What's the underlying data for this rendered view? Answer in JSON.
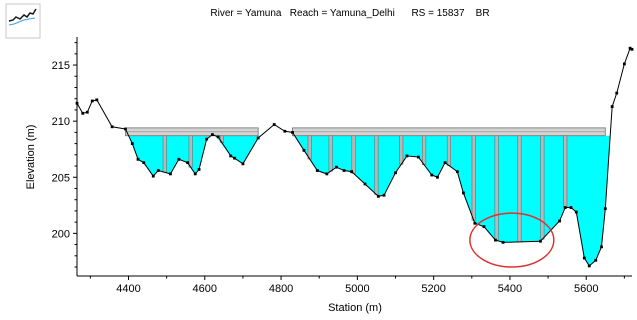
{
  "window": {
    "thumbnail_icon": "cross-section-thumbnail-icon"
  },
  "chart_data": {
    "type": "area",
    "title": "River = Yamuna   Reach = Yamuna_Delhi      RS = 15837    BR",
    "xlabel": "Station (m)",
    "ylabel": "Elevation (m)",
    "xlim": [
      4265,
      5720
    ],
    "ylim": [
      196.2,
      217.5
    ],
    "xticks": [
      4400,
      4600,
      4800,
      5000,
      5200,
      5400,
      5600
    ],
    "yticks": [
      200,
      205,
      210,
      215
    ],
    "series": [
      {
        "kind": "ground-profile",
        "points": [
          [
            4265,
            211.6
          ],
          [
            4280,
            210.7
          ],
          [
            4292,
            210.8
          ],
          [
            4305,
            211.8
          ],
          [
            4317,
            211.9
          ],
          [
            4357,
            209.5
          ],
          [
            4392,
            209.3
          ],
          [
            4410,
            208.0
          ],
          [
            4425,
            206.6
          ],
          [
            4440,
            206.3
          ],
          [
            4465,
            205.1
          ],
          [
            4478,
            205.6
          ],
          [
            4510,
            205.3
          ],
          [
            4532,
            206.6
          ],
          [
            4555,
            206.3
          ],
          [
            4575,
            205.3
          ],
          [
            4585,
            205.7
          ],
          [
            4605,
            208.4
          ],
          [
            4620,
            208.8
          ],
          [
            4635,
            208.6
          ],
          [
            4668,
            206.9
          ],
          [
            4678,
            206.7
          ],
          [
            4700,
            206.2
          ],
          [
            4740,
            208.5
          ],
          [
            4782,
            209.7
          ],
          [
            4810,
            209.1
          ],
          [
            4830,
            209.0
          ],
          [
            4860,
            207.4
          ],
          [
            4895,
            205.6
          ],
          [
            4920,
            205.3
          ],
          [
            4945,
            205.9
          ],
          [
            4965,
            205.6
          ],
          [
            4985,
            205.5
          ],
          [
            5020,
            204.4
          ],
          [
            5055,
            203.3
          ],
          [
            5070,
            203.4
          ],
          [
            5100,
            205.4
          ],
          [
            5130,
            206.9
          ],
          [
            5160,
            206.8
          ],
          [
            5195,
            205.2
          ],
          [
            5210,
            205.0
          ],
          [
            5230,
            206.3
          ],
          [
            5262,
            205.5
          ],
          [
            5278,
            203.6
          ],
          [
            5308,
            200.9
          ],
          [
            5332,
            200.6
          ],
          [
            5362,
            199.4
          ],
          [
            5382,
            199.2
          ],
          [
            5480,
            199.3
          ],
          [
            5530,
            201.1
          ],
          [
            5545,
            202.3
          ],
          [
            5560,
            202.3
          ],
          [
            5574,
            201.9
          ],
          [
            5595,
            197.8
          ],
          [
            5608,
            197.1
          ],
          [
            5625,
            197.6
          ],
          [
            5640,
            198.8
          ],
          [
            5650,
            202.2
          ],
          [
            5668,
            211.3
          ],
          [
            5680,
            212.5
          ],
          [
            5700,
            215.1
          ],
          [
            5715,
            216.5
          ],
          [
            5720,
            216.4
          ]
        ]
      },
      {
        "kind": "water-fill",
        "water_surface_elevation": 208.7,
        "color": "#00FFFF"
      },
      {
        "kind": "bridge-deck",
        "low_chord": 208.7,
        "high_chord": 209.4,
        "segments": [
          [
            4392,
            4740
          ],
          [
            4830,
            5650
          ]
        ],
        "color": "#A9A9A9"
      },
      {
        "kind": "piers",
        "stations": [
          4495,
          4563,
          4645,
          4875,
          4930,
          4990,
          5050,
          5115,
          5175,
          5240,
          5305,
          5365,
          5425,
          5485,
          5545
        ],
        "width": 9,
        "color": "#A9A9A9"
      }
    ],
    "annotation": {
      "type": "ellipse",
      "center": [
        5405,
        199.4
      ],
      "radii_data": [
        110,
        2.4
      ],
      "color": "#E03030"
    }
  }
}
